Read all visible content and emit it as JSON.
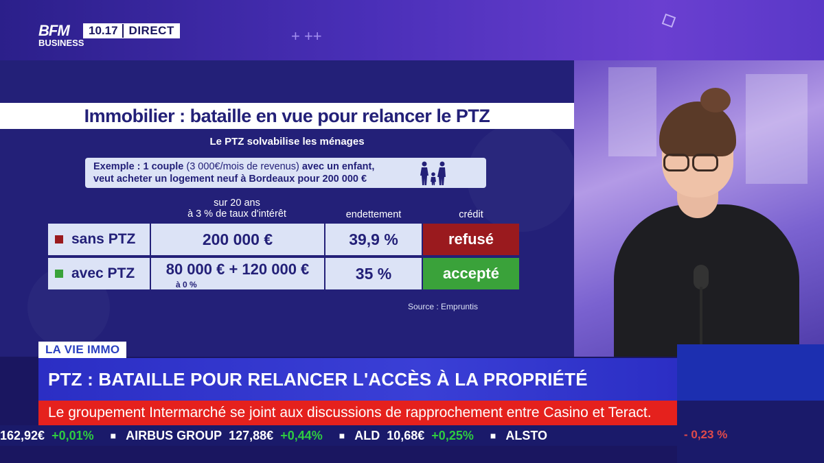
{
  "header": {
    "logo_line1": "BFM",
    "logo_line2": "BUSINESS",
    "time": "10.17",
    "live": "DIRECT",
    "sparkles": "+  ++"
  },
  "infographic": {
    "title": "Immobilier : bataille en vue pour relancer le PTZ",
    "subtitle": "Le PTZ solvabilise les ménages",
    "example_bold1": "Exemple : 1 couple",
    "example_light": " (3 000€/mois de revenus)",
    "example_bold2": " avec un enfant,",
    "example_line2": "veut acheter un logement neuf à Bordeaux pour 200 000 €",
    "col_terms_line1": "sur 20 ans",
    "col_terms_line2": "à 3 % de taux d'intérêt",
    "col_debt": "endettement",
    "col_credit": "crédit",
    "rows": [
      {
        "label": "sans PTZ",
        "amount": "200 000 €",
        "debt": "39,9 %",
        "credit": "refusé",
        "marker_color": "#9a1a1e"
      },
      {
        "label": "avec PTZ",
        "amount": "80 000 € + 120 000 €",
        "amount_note": "à 0 %",
        "debt": "35 %",
        "credit": "accepté",
        "marker_color": "#3aa23a"
      }
    ],
    "source": "Source : Empruntis"
  },
  "lower_third": {
    "tag": "LA VIE IMMO",
    "headline": "PTZ : BATAILLE POUR RELANCER L'ACCÈS À LA PROPRIÉTÉ",
    "news": "Le groupement Intermarché se joint aux discussions de rapprochement entre Casino et Teract."
  },
  "ticker": {
    "v1": "162,92€",
    "c1": "+0,01%",
    "n2": "AIRBUS GROUP",
    "v2": "127,88€",
    "c2": "+0,44%",
    "n3": "ALD",
    "v3": "10,68€",
    "c3": "+0,25%",
    "n4": "ALSTO",
    "right_change": "- 0,23 %"
  }
}
